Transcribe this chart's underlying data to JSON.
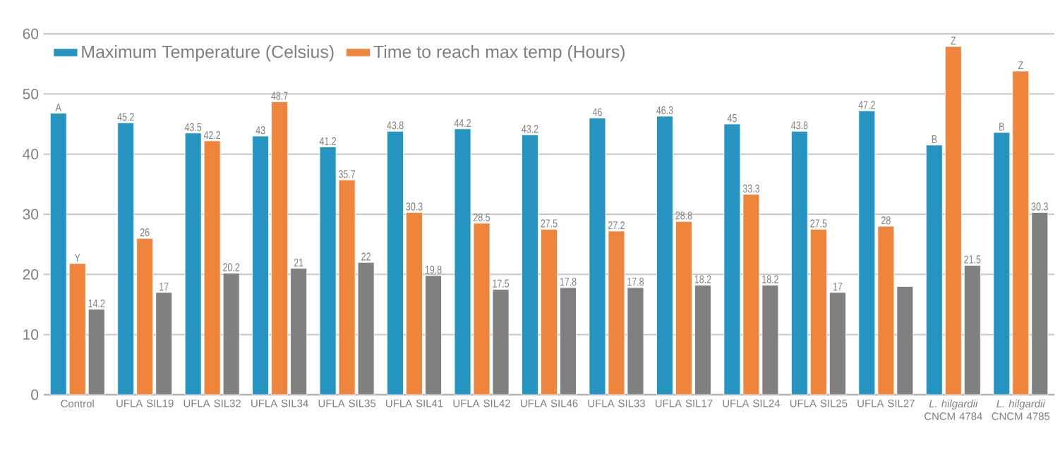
{
  "chart_data": {
    "type": "bar",
    "categories": [
      "Control",
      "UFLA SIL19",
      "UFLA SIL32",
      "UFLA SIL34",
      "UFLA SIL35",
      "UFLA SIL41",
      "UFLA SIL42",
      "UFLA SIL46",
      "UFLA SIL33",
      "UFLA SIL17",
      "UFLA SIL24",
      "UFLA SIL25",
      "UFLA SIL27",
      "*L. hilgardii* CNCM 4784",
      "*L. hilgardii* CNCM 4785"
    ],
    "series": [
      {
        "name": "Maximum Temperature (Celsius)",
        "color": "#2694c1",
        "values": [
          46.8,
          45.2,
          43.5,
          43,
          41.2,
          43.8,
          44.2,
          43.2,
          46,
          46.3,
          45,
          43.8,
          47.2,
          41.5,
          43.6
        ],
        "value_labels": [
          "A",
          "45.2",
          "43.5",
          "43",
          "41.2",
          "43.8",
          "44.2",
          "43.2",
          "46",
          "46.3",
          "45",
          "43.8",
          "47.2",
          "B",
          "B"
        ]
      },
      {
        "name": "Time to reach max temp (Hours)",
        "color": "#ef843c",
        "values": [
          21.8,
          26,
          42.2,
          48.7,
          35.7,
          30.3,
          28.5,
          27.5,
          27.2,
          28.8,
          33.3,
          27.5,
          28,
          57.9,
          53.8
        ],
        "value_labels": [
          "Y",
          "26",
          "42.2",
          "48.7",
          "35.7",
          "30.3",
          "28.5",
          "27.5",
          "27.2",
          "28.8",
          "33.3",
          "27.5",
          "28",
          "Z",
          "Z"
        ]
      },
      {
        "color": "#808080",
        "values": [
          14.2,
          17,
          20.2,
          21,
          22,
          19.8,
          17.5,
          17.8,
          17.8,
          18.2,
          18.2,
          17,
          18,
          21.5,
          30.3
        ],
        "value_labels": [
          "14.2",
          "17",
          "20.2",
          "21",
          "22",
          "19.8",
          "17.5",
          "17.8",
          "17.8",
          "18.2",
          "18.2",
          "17",
          null,
          "21.5",
          "30.3"
        ]
      }
    ],
    "ylim": [
      0,
      60
    ],
    "yticks": [
      0,
      10,
      20,
      30,
      40,
      50,
      60
    ],
    "grid": "y",
    "legend": "top left"
  }
}
